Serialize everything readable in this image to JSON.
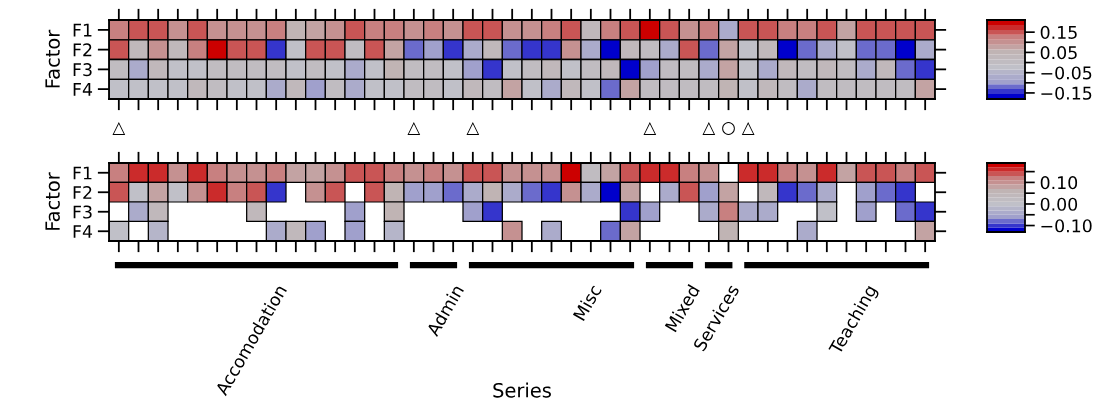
{
  "chart_data": [
    {
      "type": "heatmap",
      "ylabel": "Factor",
      "categories": [
        null,
        null,
        null,
        null,
        null,
        null,
        null,
        null,
        null,
        null,
        null,
        null,
        null,
        null,
        null,
        null,
        null,
        null,
        null,
        null,
        null,
        null,
        null,
        null,
        null,
        null,
        null,
        null,
        null,
        null,
        null,
        null,
        null,
        null,
        null,
        null,
        null,
        null,
        null,
        null,
        null,
        null
      ],
      "y_categories": [
        "F1",
        "F2",
        "F3",
        "F4"
      ],
      "cells": [
        [
          0.12,
          0.16,
          0.16,
          0.09,
          0.16,
          0.09,
          0.09,
          0.09,
          0.12,
          0.05,
          0.07,
          0.09,
          0.16,
          0.12,
          0.12,
          0.09,
          0.12,
          0.09,
          0.16,
          0.16,
          0.09,
          0.09,
          0.12,
          0.16,
          0.03,
          0.12,
          0.14,
          0.19,
          0.16,
          0.09,
          0.12,
          -0.06,
          0.16,
          0.16,
          0.12,
          0.12,
          0.16,
          0.07,
          0.16,
          0.16,
          0.14,
          0.14
        ],
        [
          0.16,
          0.03,
          0.09,
          0.03,
          0.12,
          0.19,
          0.14,
          0.16,
          -0.14,
          -0.03,
          0.14,
          0.16,
          0.0,
          0.16,
          0.07,
          -0.11,
          -0.09,
          -0.14,
          -0.06,
          0.03,
          -0.11,
          -0.14,
          -0.14,
          0.09,
          -0.06,
          -0.16,
          0.03,
          0.0,
          -0.06,
          0.16,
          -0.11,
          0.07,
          -0.03,
          0.03,
          -0.16,
          -0.11,
          -0.06,
          -0.03,
          -0.11,
          -0.11,
          -0.16,
          -0.06
        ],
        [
          0.0,
          -0.06,
          0.03,
          -0.03,
          -0.03,
          0.0,
          0.0,
          0.0,
          0.0,
          -0.03,
          0.0,
          -0.03,
          -0.06,
          -0.03,
          0.05,
          0.0,
          0.0,
          -0.03,
          -0.09,
          -0.14,
          -0.03,
          0.0,
          0.03,
          -0.03,
          0.0,
          0.03,
          -0.18,
          -0.09,
          0.0,
          0.0,
          -0.06,
          0.07,
          -0.03,
          -0.06,
          0.03,
          0.0,
          0.03,
          0.0,
          -0.06,
          0.03,
          -0.11,
          -0.14
        ],
        [
          -0.03,
          -0.03,
          -0.03,
          -0.03,
          0.03,
          0.0,
          -0.03,
          -0.03,
          -0.06,
          0.03,
          -0.09,
          0.0,
          -0.06,
          -0.03,
          -0.03,
          0.0,
          0.0,
          -0.03,
          0.03,
          0.0,
          0.07,
          -0.03,
          -0.06,
          0.03,
          -0.03,
          -0.11,
          0.07,
          0.0,
          0.0,
          0.0,
          0.0,
          0.05,
          -0.03,
          0.03,
          0.0,
          -0.06,
          0.0,
          0.0,
          0.0,
          0.0,
          0.0,
          0.07
        ]
      ],
      "clim": [
        -0.18,
        0.21
      ],
      "cticks": [
        0.15,
        {
          "value": 0.1,
          "label": null
        },
        0.05,
        {
          "value": 0.0,
          "label": null
        },
        {
          "value": -0.05,
          "label": "−0.05"
        },
        {
          "value": -0.1,
          "label": null
        },
        {
          "value": -0.15,
          "label": "−0.15"
        }
      ],
      "annotations": [
        "△",
        "△",
        "△",
        "△",
        "△",
        "○",
        "△"
      ]
    },
    {
      "type": "heatmap",
      "ylabel": "Factor",
      "xlabel": "Series",
      "categories": [
        null,
        null,
        null,
        null,
        null,
        null,
        null,
        null,
        "Accomodation",
        null,
        null,
        null,
        null,
        null,
        null,
        null,
        null,
        "Admin",
        null,
        null,
        null,
        null,
        null,
        null,
        "Misc",
        null,
        null,
        null,
        null,
        "Mixed",
        null,
        "Services",
        null,
        null,
        null,
        null,
        null,
        null,
        "Teaching",
        null,
        null,
        null
      ],
      "y_categories": [
        "F1",
        "F2",
        "F3",
        "F4"
      ],
      "cells": [
        [
          0.12,
          0.16,
          0.16,
          0.09,
          0.16,
          0.12,
          0.09,
          0.09,
          0.12,
          0.07,
          0.07,
          0.09,
          0.14,
          0.14,
          0.12,
          0.09,
          0.12,
          0.09,
          0.14,
          0.14,
          0.09,
          0.09,
          0.09,
          0.19,
          0.02,
          0.07,
          0.14,
          0.16,
          0.16,
          0.12,
          0.09,
          null,
          0.16,
          0.16,
          0.12,
          0.09,
          0.16,
          0.07,
          0.14,
          0.14,
          0.12,
          0.14
        ],
        [
          0.14,
          0.0,
          0.07,
          0.0,
          0.09,
          0.16,
          0.12,
          0.14,
          -0.1,
          null,
          0.09,
          0.14,
          null,
          0.14,
          0.05,
          -0.06,
          -0.06,
          -0.08,
          -0.04,
          0.05,
          -0.04,
          -0.08,
          -0.1,
          0.09,
          -0.04,
          -0.13,
          0.07,
          null,
          -0.04,
          0.14,
          -0.06,
          0.07,
          null,
          0.03,
          -0.1,
          -0.08,
          -0.04,
          null,
          -0.06,
          -0.08,
          -0.1,
          null
        ],
        [
          null,
          -0.04,
          0.03,
          null,
          null,
          null,
          null,
          0.03,
          null,
          null,
          null,
          null,
          -0.06,
          null,
          0.05,
          null,
          null,
          null,
          -0.06,
          -0.1,
          null,
          null,
          null,
          null,
          null,
          null,
          -0.11,
          -0.06,
          null,
          null,
          -0.04,
          0.12,
          -0.04,
          -0.04,
          null,
          null,
          0.0,
          null,
          -0.06,
          null,
          -0.08,
          -0.1
        ],
        [
          0.0,
          null,
          -0.02,
          null,
          null,
          null,
          null,
          null,
          -0.04,
          0.03,
          -0.06,
          null,
          -0.06,
          null,
          -0.02,
          null,
          null,
          null,
          null,
          null,
          0.09,
          null,
          -0.04,
          null,
          null,
          -0.08,
          0.07,
          null,
          null,
          null,
          null,
          0.05,
          null,
          null,
          null,
          -0.04,
          null,
          null,
          null,
          null,
          null,
          0.07
        ]
      ],
      "clim": [
        -0.13,
        0.19
      ],
      "cticks": [
        {
          "value": 0.15,
          "label": null
        },
        {
          "value": 0.1,
          "label": "0.10"
        },
        {
          "value": 0.05,
          "label": null
        },
        {
          "value": 0.0,
          "label": "0.00"
        },
        {
          "value": -0.05,
          "label": null
        },
        {
          "value": -0.1,
          "label": "−0.10"
        }
      ]
    }
  ]
}
